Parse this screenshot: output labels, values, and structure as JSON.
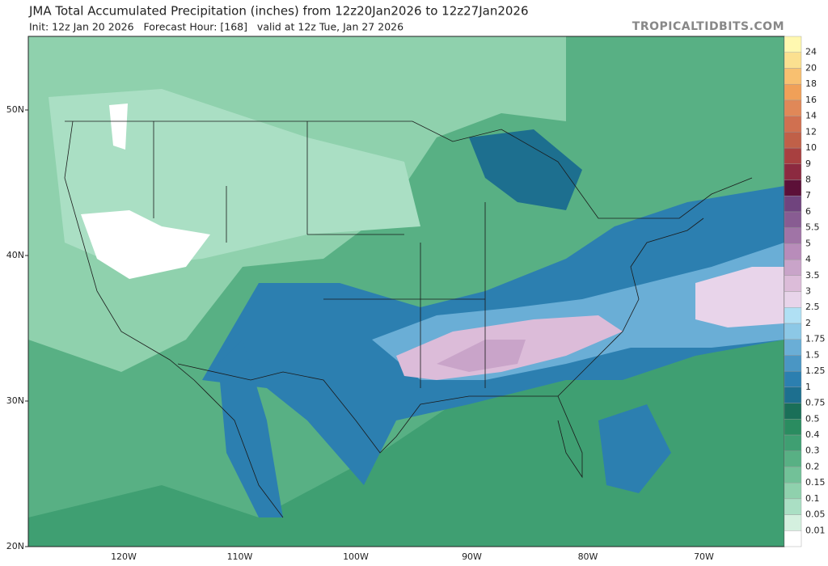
{
  "header": {
    "title": "JMA Total Accumulated Precipitation (inches) from 12z20Jan2026 to 12z27Jan2026",
    "subtitle": "Init: 12z Jan 20 2026   Forecast Hour: [168]   valid at 12z Tue, Jan 27 2026",
    "site": "TROPICALTIDBITS.COM"
  },
  "map": {
    "lat_labels": [
      "50N",
      "40N",
      "30N",
      "20N"
    ],
    "lon_labels": [
      "120W",
      "110W",
      "100W",
      "90W",
      "80W",
      "70W"
    ]
  },
  "legend": {
    "levels": [
      "0.01",
      "0.05",
      "0.1",
      "0.15",
      "0.2",
      "0.3",
      "0.4",
      "0.5",
      "0.75",
      "1",
      "1.25",
      "1.5",
      "1.75",
      "2",
      "2.5",
      "3",
      "3.5",
      "4",
      "5",
      "5.5",
      "6",
      "7",
      "8",
      "9",
      "10",
      "12",
      "14",
      "16",
      "18",
      "20",
      "24"
    ],
    "colors": [
      "#ffffff",
      "#d4f0df",
      "#aadfc4",
      "#8fd1ad",
      "#72c198",
      "#58b084",
      "#3f9f72",
      "#2a8c60",
      "#1a6f58",
      "#1d6f8f",
      "#2c7fb0",
      "#4a96c4",
      "#6aaed6",
      "#8cc8e6",
      "#b0e0f4",
      "#e8d4ea",
      "#dcbcd9",
      "#c9a4c9",
      "#b88cba",
      "#a074a6",
      "#885c92",
      "#70447e",
      "#5c1038",
      "#8c2a40",
      "#a84040",
      "#c06048",
      "#d07050",
      "#e08858",
      "#f0a058",
      "#f8c070",
      "#fbe090",
      "#fff8b0"
    ]
  }
}
